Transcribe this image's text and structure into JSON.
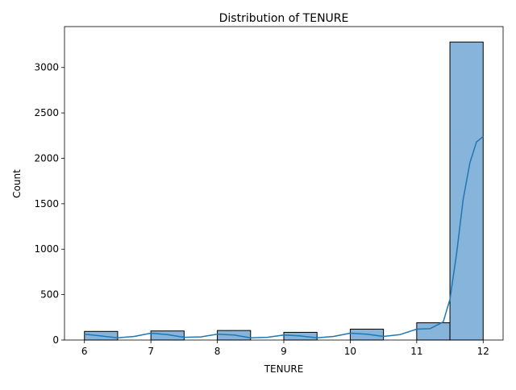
{
  "chart_data": {
    "type": "bar",
    "title": "Distribution of TENURE",
    "xlabel": "TENURE",
    "ylabel": "Count",
    "xlim": [
      5.7,
      12.3
    ],
    "ylim": [
      0,
      3450
    ],
    "x_ticks": [
      "6",
      "7",
      "8",
      "9",
      "10",
      "11",
      "12"
    ],
    "y_ticks": [
      "0",
      "500",
      "1000",
      "1500",
      "2000",
      "2500",
      "3000"
    ],
    "grid": false,
    "legend": "none",
    "bins": [
      {
        "x0": 6.0,
        "x1": 6.5,
        "value": 95
      },
      {
        "x0": 7.0,
        "x1": 7.5,
        "value": 100
      },
      {
        "x0": 8.0,
        "x1": 8.5,
        "value": 105
      },
      {
        "x0": 9.0,
        "x1": 9.5,
        "value": 85
      },
      {
        "x0": 10.0,
        "x1": 10.5,
        "value": 120
      },
      {
        "x0": 11.0,
        "x1": 11.5,
        "value": 190
      },
      {
        "x0": 11.5,
        "x1": 12.0,
        "value": 3280
      }
    ],
    "kde": {
      "x": [
        6.0,
        6.25,
        6.5,
        6.75,
        7.0,
        7.25,
        7.5,
        7.75,
        8.0,
        8.25,
        8.5,
        8.75,
        9.0,
        9.25,
        9.5,
        9.75,
        10.0,
        10.25,
        10.5,
        10.75,
        11.0,
        11.2,
        11.4,
        11.5,
        11.6,
        11.7,
        11.8,
        11.9,
        12.0
      ],
      "y": [
        65,
        45,
        25,
        40,
        75,
        60,
        30,
        35,
        65,
        55,
        25,
        30,
        55,
        45,
        25,
        40,
        75,
        65,
        40,
        60,
        120,
        125,
        200,
        450,
        950,
        1550,
        1950,
        2180,
        2240
      ]
    },
    "colors": {
      "bar_fill": "#86b4da",
      "bar_edge": "#000000",
      "kde_line": "#1f77b4"
    }
  }
}
